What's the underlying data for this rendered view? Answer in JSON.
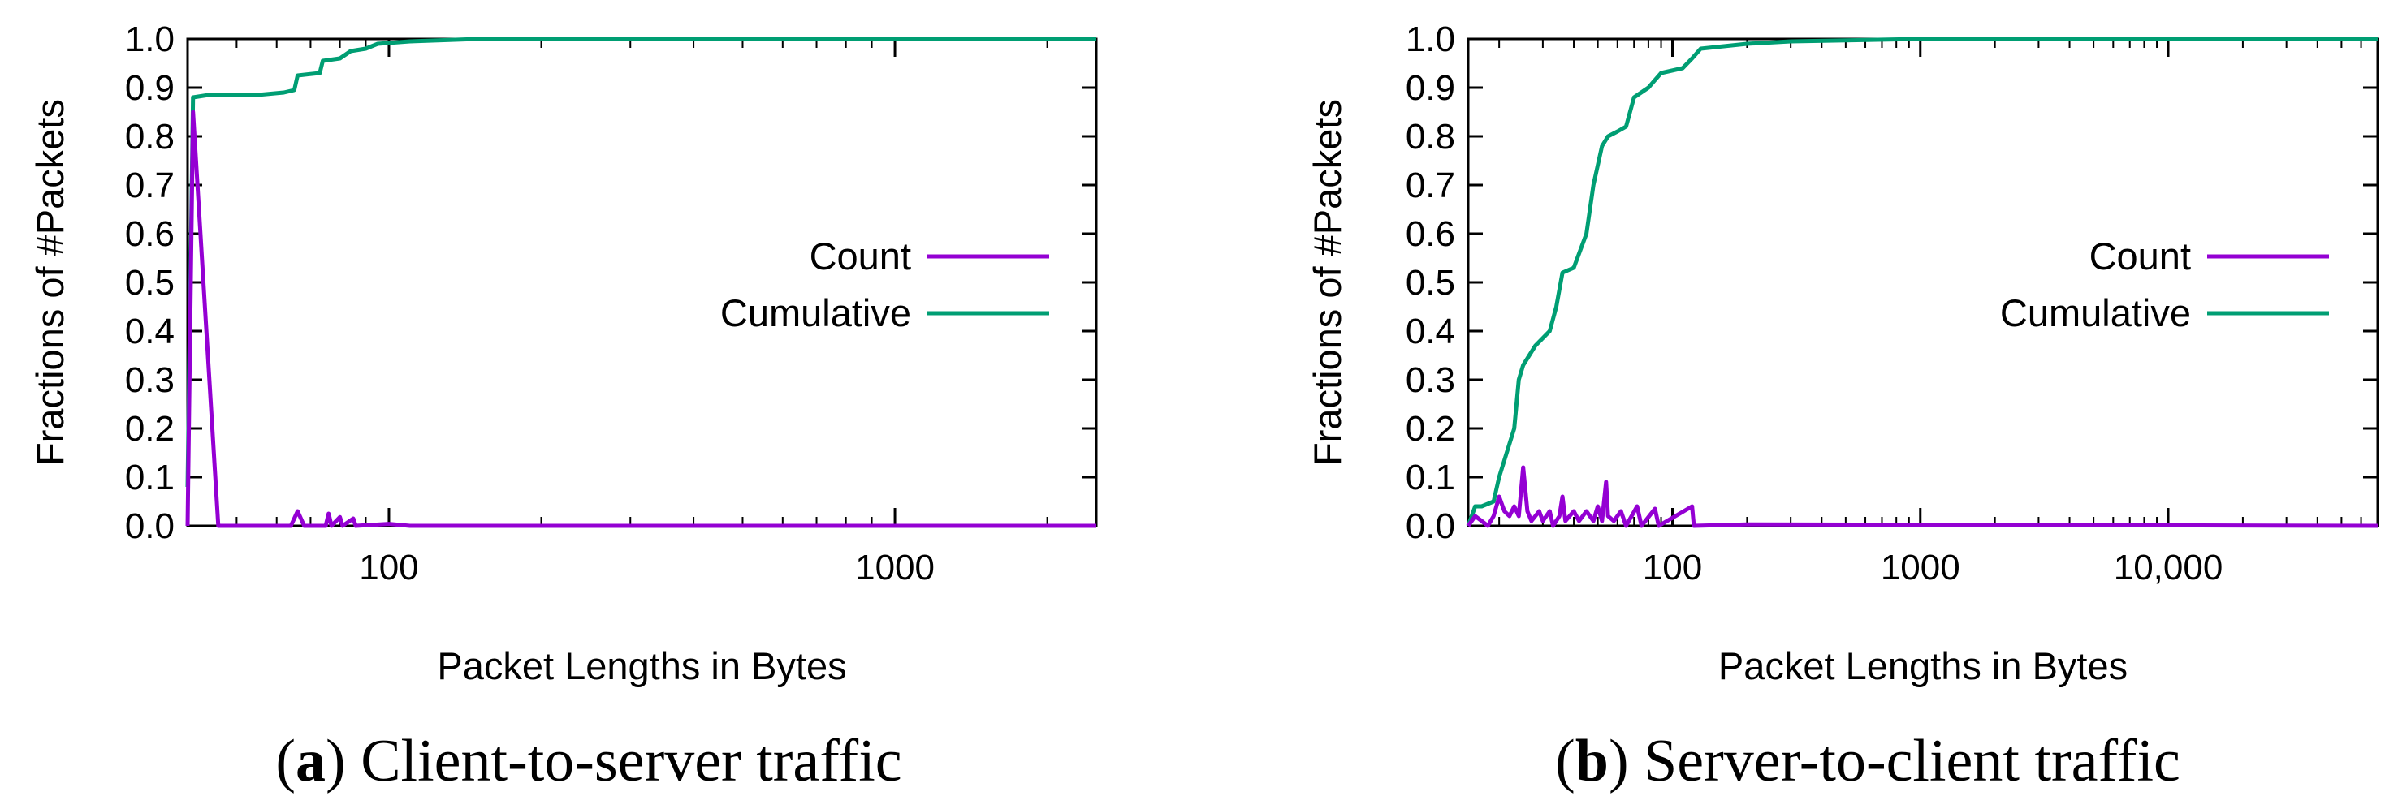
{
  "chart_data": [
    {
      "type": "line",
      "title": "",
      "xlabel": "Packet Lengths in Bytes",
      "ylabel": "Fractions of #Packets",
      "xscale": "log",
      "xlim": [
        40,
        2500
      ],
      "ylim": [
        0,
        1.0
      ],
      "xticks": [
        100,
        1000
      ],
      "xtick_labels": [
        "100",
        "1000"
      ],
      "yticks": [
        0,
        0.1,
        0.2,
        0.3,
        0.4,
        0.5,
        0.6,
        0.7,
        0.8,
        0.9,
        1.0
      ],
      "ytick_labels": [
        "0.0",
        "0.1",
        "0.2",
        "0.3",
        "0.4",
        "0.5",
        "0.6",
        "0.7",
        "0.8",
        "0.9",
        "1.0"
      ],
      "legend_position": "center-right",
      "caption_letter": "a",
      "caption_text": " Client-to-server traffic",
      "series": [
        {
          "name": "Count",
          "color": "#9400d3",
          "points": [
            [
              40,
              0.0
            ],
            [
              41,
              0.85
            ],
            [
              46,
              0.0
            ],
            [
              60,
              0.0
            ],
            [
              64,
              0.0
            ],
            [
              66,
              0.03
            ],
            [
              68,
              0.0
            ],
            [
              75,
              0.0
            ],
            [
              76,
              0.025
            ],
            [
              77,
              0.0
            ],
            [
              80,
              0.018
            ],
            [
              81,
              0.0
            ],
            [
              85,
              0.015
            ],
            [
              86,
              0.0
            ],
            [
              100,
              0.004
            ],
            [
              110,
              0.0
            ],
            [
              2500,
              0.0
            ]
          ]
        },
        {
          "name": "Cumulative",
          "color": "#009e73",
          "points": [
            [
              40,
              0.08
            ],
            [
              41,
              0.88
            ],
            [
              44,
              0.885
            ],
            [
              55,
              0.885
            ],
            [
              62,
              0.89
            ],
            [
              65,
              0.895
            ],
            [
              66,
              0.925
            ],
            [
              73,
              0.93
            ],
            [
              74,
              0.955
            ],
            [
              80,
              0.96
            ],
            [
              84,
              0.975
            ],
            [
              90,
              0.98
            ],
            [
              95,
              0.99
            ],
            [
              110,
              0.995
            ],
            [
              150,
              1.0
            ],
            [
              2500,
              1.0
            ]
          ]
        }
      ]
    },
    {
      "type": "line",
      "title": "",
      "xlabel": "Packet Lengths in Bytes",
      "ylabel": "Fractions of #Packets",
      "xscale": "log",
      "xlim": [
        15,
        70000
      ],
      "ylim": [
        0,
        1.0
      ],
      "xticks": [
        100,
        1000,
        10000
      ],
      "xtick_labels": [
        "100",
        "1000",
        "10,000"
      ],
      "yticks": [
        0,
        0.1,
        0.2,
        0.3,
        0.4,
        0.5,
        0.6,
        0.7,
        0.8,
        0.9,
        1.0
      ],
      "ytick_labels": [
        "0.0",
        "0.1",
        "0.2",
        "0.3",
        "0.4",
        "0.5",
        "0.6",
        "0.7",
        "0.8",
        "0.9",
        "1.0"
      ],
      "legend_position": "center-right",
      "caption_letter": "b",
      "caption_text": " Server-to-client traffic",
      "series": [
        {
          "name": "Count",
          "color": "#9400d3",
          "points": [
            [
              15,
              0.0
            ],
            [
              16,
              0.02
            ],
            [
              17,
              0.01
            ],
            [
              18,
              0.0
            ],
            [
              19,
              0.02
            ],
            [
              20,
              0.06
            ],
            [
              21,
              0.03
            ],
            [
              22,
              0.02
            ],
            [
              23,
              0.04
            ],
            [
              24,
              0.02
            ],
            [
              25,
              0.12
            ],
            [
              26,
              0.03
            ],
            [
              27,
              0.01
            ],
            [
              29,
              0.03
            ],
            [
              30,
              0.01
            ],
            [
              32,
              0.03
            ],
            [
              33,
              0.0
            ],
            [
              35,
              0.02
            ],
            [
              36,
              0.06
            ],
            [
              37,
              0.01
            ],
            [
              40,
              0.03
            ],
            [
              42,
              0.01
            ],
            [
              45,
              0.03
            ],
            [
              48,
              0.01
            ],
            [
              50,
              0.04
            ],
            [
              52,
              0.01
            ],
            [
              54,
              0.09
            ],
            [
              55,
              0.02
            ],
            [
              58,
              0.01
            ],
            [
              62,
              0.03
            ],
            [
              65,
              0.0
            ],
            [
              72,
              0.04
            ],
            [
              75,
              0.0
            ],
            [
              85,
              0.035
            ],
            [
              88,
              0.0
            ],
            [
              120,
              0.04
            ],
            [
              122,
              0.0
            ],
            [
              200,
              0.003
            ],
            [
              70000,
              0.0
            ]
          ]
        },
        {
          "name": "Cumulative",
          "color": "#009e73",
          "points": [
            [
              15,
              0.0
            ],
            [
              16,
              0.04
            ],
            [
              17,
              0.04
            ],
            [
              19,
              0.05
            ],
            [
              20,
              0.1
            ],
            [
              23,
              0.2
            ],
            [
              24,
              0.3
            ],
            [
              25,
              0.33
            ],
            [
              28,
              0.37
            ],
            [
              32,
              0.4
            ],
            [
              34,
              0.45
            ],
            [
              36,
              0.52
            ],
            [
              40,
              0.53
            ],
            [
              45,
              0.6
            ],
            [
              48,
              0.7
            ],
            [
              52,
              0.78
            ],
            [
              55,
              0.8
            ],
            [
              60,
              0.81
            ],
            [
              65,
              0.82
            ],
            [
              70,
              0.88
            ],
            [
              80,
              0.9
            ],
            [
              90,
              0.93
            ],
            [
              110,
              0.94
            ],
            [
              120,
              0.96
            ],
            [
              130,
              0.98
            ],
            [
              200,
              0.99
            ],
            [
              300,
              0.995
            ],
            [
              1000,
              1.0
            ],
            [
              70000,
              1.0
            ]
          ]
        }
      ]
    }
  ]
}
